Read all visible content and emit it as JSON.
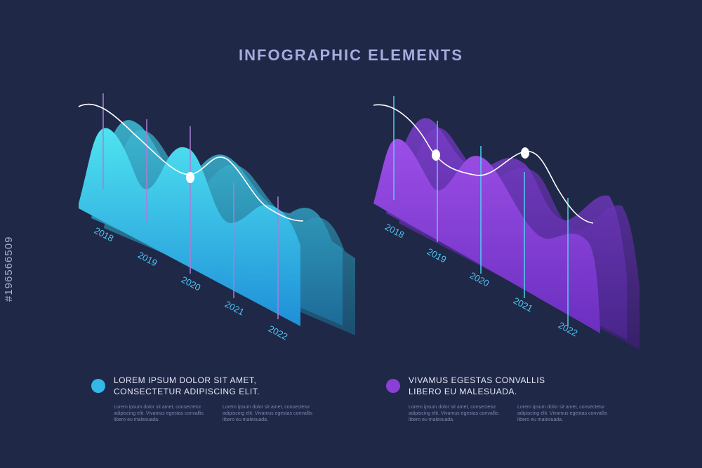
{
  "title": "INFOGRAPHIC ELEMENTS",
  "watermark": "#196566509",
  "colors": {
    "background": "#1f2847",
    "cyan": "#2fb2e6",
    "purple": "#7b3fd1",
    "line": "#ffffff"
  },
  "chart_data": [
    {
      "type": "area",
      "categories": [
        "2018",
        "2019",
        "2020",
        "2021",
        "2022"
      ],
      "series": [
        {
          "color": "#2fc3e6"
        },
        {
          "color": "#32aac8"
        },
        {
          "color": "#2d86a8"
        }
      ],
      "trend_line": {
        "color": "#ffffff"
      }
    },
    {
      "type": "area",
      "categories": [
        "2018",
        "2019",
        "2020",
        "2021",
        "2022"
      ],
      "series": [
        {
          "color": "#8a3fd6"
        },
        {
          "color": "#6a35b8"
        },
        {
          "color": "#552c9a"
        }
      ],
      "trend_line": {
        "color": "#ffffff"
      }
    }
  ],
  "legend": [
    {
      "heading_line1": "LOREM IPSUM DOLOR SIT AMET,",
      "heading_line2": "CONSECTETUR ADIPISCING ELIT.",
      "col1": "Lorem ipsum dolor sit amet, consectetur adipiscing elit. Vivamus egestas convallis libero eu malesuada.",
      "col2": "Lorem ipsum dolor sit amet, consectetur adipiscing elit. Vivamus egestas convallis libero eu malesuada.",
      "color": "#34b8e8"
    },
    {
      "heading_line1": "VIVAMUS EGESTAS CONVALLIS",
      "heading_line2": "LIBERO EU MALESUADA.",
      "col1": "Lorem ipsum dolor sit amet, consectetur adipiscing elit. Vivamus egestas convallis libero eu malesuada.",
      "col2": "Lorem ipsum dolor sit amet, consectetur adipiscing elit. Vivamus egestas convallis libero eu malesuada.",
      "color": "#8a3fd6"
    }
  ]
}
